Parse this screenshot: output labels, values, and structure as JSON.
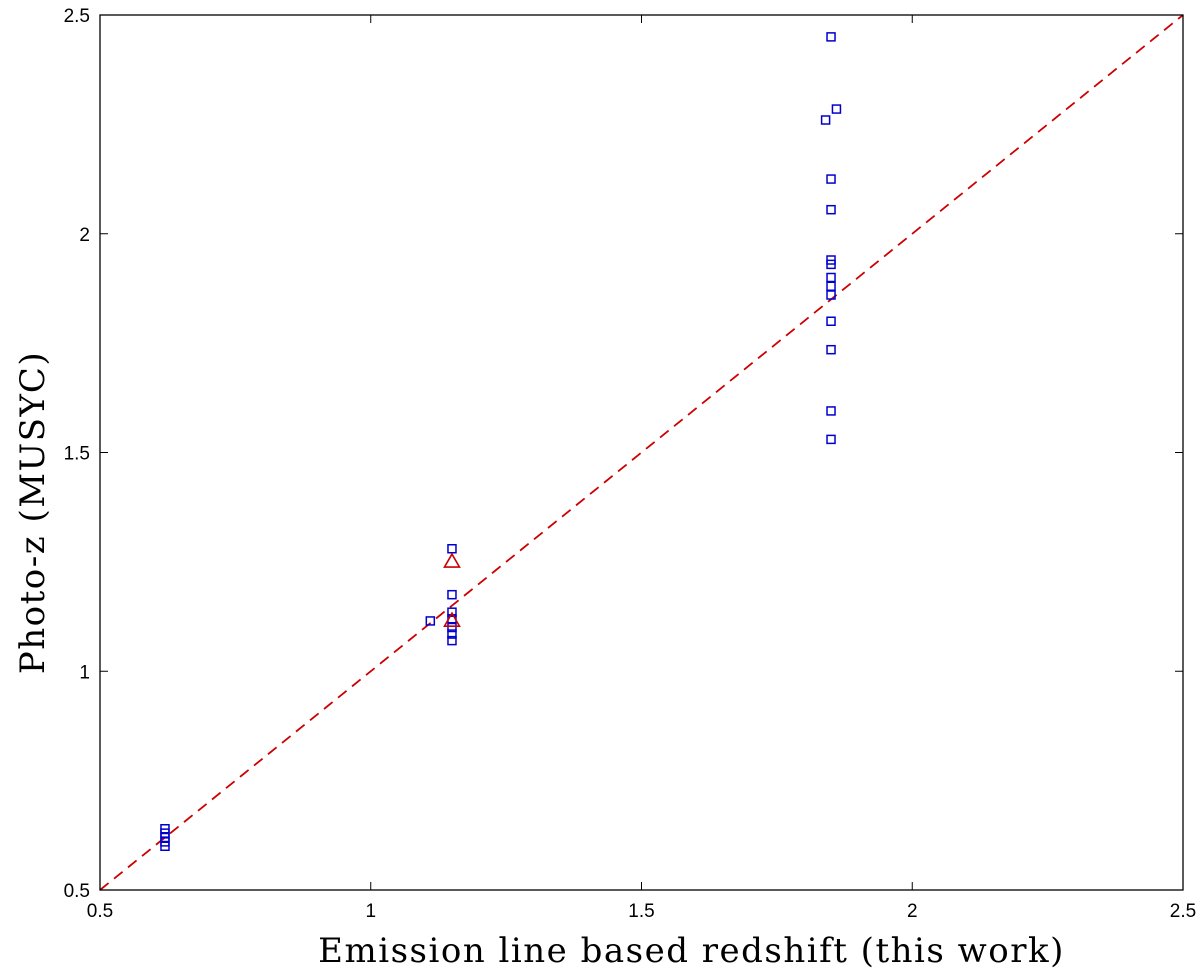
{
  "chart_data": {
    "type": "scatter",
    "title": "",
    "xlabel": "Emission line based redshift (this work)",
    "ylabel": "Photo-z (MUSYC)",
    "xlim": [
      0.5,
      2.5
    ],
    "ylim": [
      0.5,
      2.5
    ],
    "xticks": [
      "0.5",
      "1",
      "1.5",
      "2",
      "2.5"
    ],
    "yticks": [
      "0.5",
      "1",
      "1.5",
      "2",
      "2.5"
    ],
    "grid": false,
    "legend": "none",
    "series": [
      {
        "marker": "square",
        "color": "#0000cc",
        "points": [
          [
            0.62,
            0.64
          ],
          [
            0.62,
            0.63
          ],
          [
            0.62,
            0.62
          ],
          [
            0.62,
            0.61
          ],
          [
            0.62,
            0.6
          ],
          [
            1.11,
            1.115
          ],
          [
            1.15,
            1.28
          ],
          [
            1.15,
            1.175
          ],
          [
            1.15,
            1.135
          ],
          [
            1.15,
            1.12
          ],
          [
            1.15,
            1.1
          ],
          [
            1.15,
            1.085
          ],
          [
            1.15,
            1.07
          ],
          [
            1.85,
            2.45
          ],
          [
            1.86,
            2.285
          ],
          [
            1.84,
            2.26
          ],
          [
            1.85,
            2.125
          ],
          [
            1.85,
            2.055
          ],
          [
            1.85,
            1.94
          ],
          [
            1.85,
            1.93
          ],
          [
            1.85,
            1.9
          ],
          [
            1.85,
            1.88
          ],
          [
            1.85,
            1.86
          ],
          [
            1.85,
            1.8
          ],
          [
            1.85,
            1.735
          ],
          [
            1.85,
            1.595
          ],
          [
            1.85,
            1.53
          ]
        ]
      },
      {
        "marker": "triangle",
        "color": "#cc0000",
        "points": [
          [
            1.15,
            1.25
          ],
          [
            1.15,
            1.115
          ]
        ]
      },
      {
        "marker": "dashed-line",
        "color": "#cc0000",
        "points": [
          [
            0.5,
            0.5
          ],
          [
            2.5,
            2.5
          ]
        ]
      }
    ]
  }
}
